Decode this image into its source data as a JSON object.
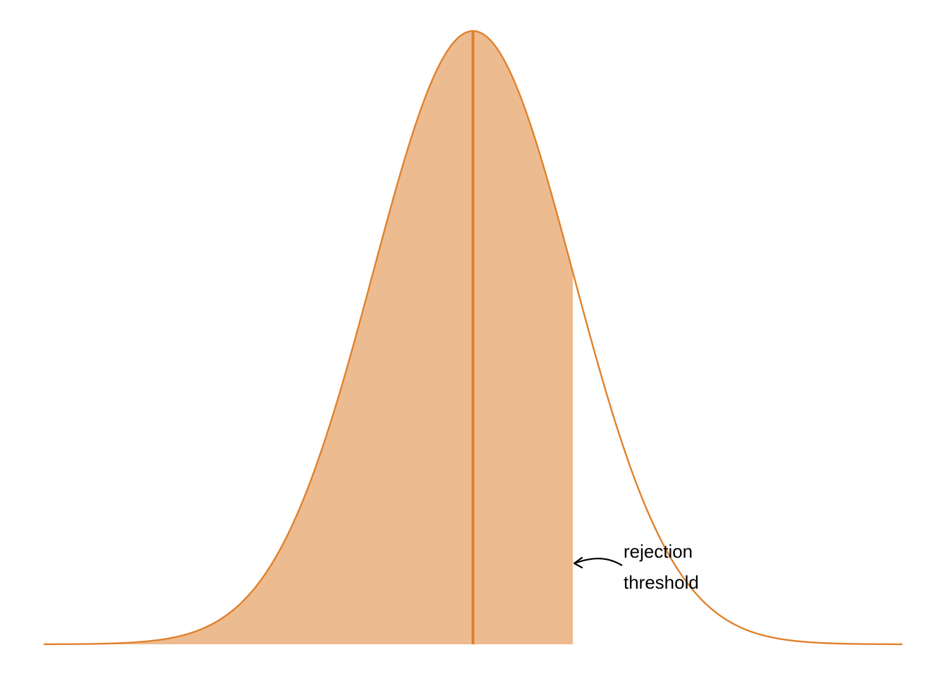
{
  "chart_data": {
    "type": "area",
    "title": "",
    "xlabel": "",
    "ylabel": "",
    "grid": false,
    "legend": "none",
    "distribution": {
      "kind": "normal",
      "mean": 0,
      "sd": 1
    },
    "xlim": [
      -4.3,
      4.3
    ],
    "ylim": [
      0,
      0.4
    ],
    "shaded_region": {
      "from": -4.3,
      "to": 1.0
    },
    "mean_line_x": 0,
    "rejection_threshold_x": 1.0,
    "annotation": {
      "line1": "rejection",
      "line2": "threshold"
    },
    "colors": {
      "curve": "#e0812d",
      "fill": "#edbb90",
      "annotation": "#000000"
    }
  }
}
